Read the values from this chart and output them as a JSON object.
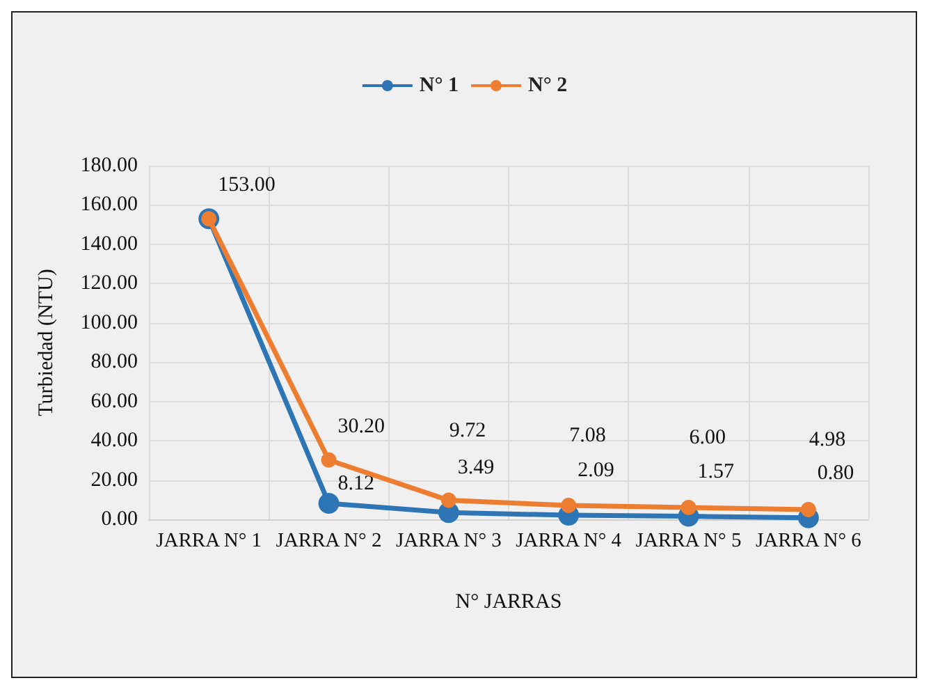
{
  "chart_data": {
    "type": "line",
    "xlabel": "N° JARRAS",
    "ylabel": "Turbiedad (NTU)",
    "categories": [
      "JARRA N° 1",
      "JARRA N° 2",
      "JARRA N° 3",
      "JARRA N° 4",
      "JARRA N° 5",
      "JARRA N° 6"
    ],
    "series": [
      {
        "name": "N° 1",
        "color": "#2e75b6",
        "values": [
          153,
          8.12,
          3.49,
          2.09,
          1.57,
          0.8
        ],
        "value_labels": [
          null,
          "8.12",
          "3.49",
          "2.09",
          "1.57",
          "0.80"
        ]
      },
      {
        "name": "N° 2",
        "color": "#ed7d31",
        "values": [
          153,
          30.2,
          9.72,
          7.08,
          6.0,
          4.98
        ],
        "value_labels": [
          "153.00",
          "30.20",
          "9.72",
          "7.08",
          "6.00",
          "4.98"
        ]
      }
    ],
    "ylim": [
      0,
      180
    ],
    "yticks": [
      {
        "value": 0,
        "label": "0.00"
      },
      {
        "value": 20,
        "label": "20.00"
      },
      {
        "value": 40,
        "label": "40.00"
      },
      {
        "value": 60,
        "label": "60.00"
      },
      {
        "value": 80,
        "label": "80.00"
      },
      {
        "value": 100,
        "label": "100.00"
      },
      {
        "value": 120,
        "label": "120.00"
      },
      {
        "value": 140,
        "label": "140.00"
      },
      {
        "value": 160,
        "label": "160.00"
      },
      {
        "value": 180,
        "label": "180.00"
      }
    ],
    "grid": true,
    "legend": "top",
    "marker": "circle",
    "line_style": "solid"
  }
}
